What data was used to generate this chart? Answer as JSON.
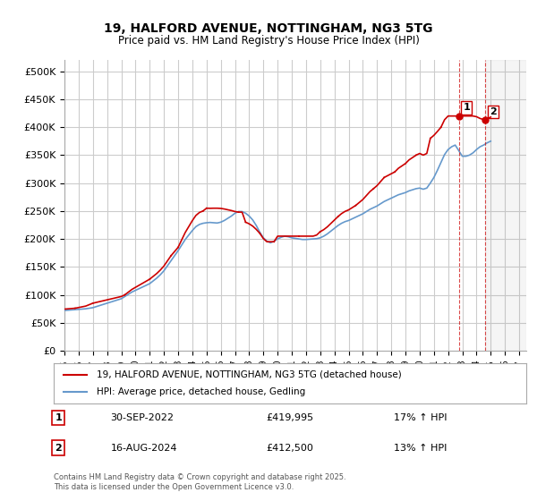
{
  "title": "19, HALFORD AVENUE, NOTTINGHAM, NG3 5TG",
  "subtitle": "Price paid vs. HM Land Registry's House Price Index (HPI)",
  "ylim": [
    0,
    520000
  ],
  "yticks": [
    0,
    50000,
    100000,
    150000,
    200000,
    250000,
    300000,
    350000,
    400000,
    450000,
    500000
  ],
  "xlim_start": 1995.0,
  "xlim_end": 2027.5,
  "xticks": [
    1995,
    1996,
    1997,
    1998,
    1999,
    2000,
    2001,
    2002,
    2003,
    2004,
    2005,
    2006,
    2007,
    2008,
    2009,
    2010,
    2011,
    2012,
    2013,
    2014,
    2015,
    2016,
    2017,
    2018,
    2019,
    2020,
    2021,
    2022,
    2023,
    2024,
    2025,
    2026,
    2027
  ],
  "red_line_color": "#cc0000",
  "blue_line_color": "#6699cc",
  "grid_color": "#cccccc",
  "background_color": "#ffffff",
  "legend_label_red": "19, HALFORD AVENUE, NOTTINGHAM, NG3 5TG (detached house)",
  "legend_label_blue": "HPI: Average price, detached house, Gedling",
  "annotation1_label": "1",
  "annotation1_date": "30-SEP-2022",
  "annotation1_price": "£419,995",
  "annotation1_hpi": "17% ↑ HPI",
  "annotation2_label": "2",
  "annotation2_date": "16-AUG-2024",
  "annotation2_price": "£412,500",
  "annotation2_hpi": "13% ↑ HPI",
  "footer": "Contains HM Land Registry data © Crown copyright and database right 2025.\nThis data is licensed under the Open Government Licence v3.0.",
  "vline1_x": 2022.75,
  "vline2_x": 2024.62,
  "marker1_x": 2022.75,
  "marker1_y": 419995,
  "marker2_x": 2024.62,
  "marker2_y": 412500,
  "hpi_data": {
    "x": [
      1995.0,
      1995.25,
      1995.5,
      1995.75,
      1996.0,
      1996.25,
      1996.5,
      1996.75,
      1997.0,
      1997.25,
      1997.5,
      1997.75,
      1998.0,
      1998.25,
      1998.5,
      1998.75,
      1999.0,
      1999.25,
      1999.5,
      1999.75,
      2000.0,
      2000.25,
      2000.5,
      2000.75,
      2001.0,
      2001.25,
      2001.5,
      2001.75,
      2002.0,
      2002.25,
      2002.5,
      2002.75,
      2003.0,
      2003.25,
      2003.5,
      2003.75,
      2004.0,
      2004.25,
      2004.5,
      2004.75,
      2005.0,
      2005.25,
      2005.5,
      2005.75,
      2006.0,
      2006.25,
      2006.5,
      2006.75,
      2007.0,
      2007.25,
      2007.5,
      2007.75,
      2008.0,
      2008.25,
      2008.5,
      2008.75,
      2009.0,
      2009.25,
      2009.5,
      2009.75,
      2010.0,
      2010.25,
      2010.5,
      2010.75,
      2011.0,
      2011.25,
      2011.5,
      2011.75,
      2012.0,
      2012.25,
      2012.5,
      2012.75,
      2013.0,
      2013.25,
      2013.5,
      2013.75,
      2014.0,
      2014.25,
      2014.5,
      2014.75,
      2015.0,
      2015.25,
      2015.5,
      2015.75,
      2016.0,
      2016.25,
      2016.5,
      2016.75,
      2017.0,
      2017.25,
      2017.5,
      2017.75,
      2018.0,
      2018.25,
      2018.5,
      2018.75,
      2019.0,
      2019.25,
      2019.5,
      2019.75,
      2020.0,
      2020.25,
      2020.5,
      2020.75,
      2021.0,
      2021.25,
      2021.5,
      2021.75,
      2022.0,
      2022.25,
      2022.5,
      2022.75,
      2023.0,
      2023.25,
      2023.5,
      2023.75,
      2024.0,
      2024.25,
      2024.5,
      2024.75,
      2025.0
    ],
    "y": [
      72000,
      72500,
      73000,
      73500,
      74000,
      74500,
      75000,
      76000,
      77000,
      79000,
      81000,
      83000,
      85000,
      87000,
      89000,
      91000,
      93000,
      97000,
      101000,
      105000,
      108000,
      111000,
      114000,
      117000,
      120000,
      125000,
      130000,
      136000,
      143000,
      152000,
      161000,
      170000,
      179000,
      189000,
      199000,
      207000,
      215000,
      222000,
      226000,
      228000,
      229000,
      229500,
      229000,
      228500,
      230000,
      233000,
      237000,
      241000,
      246000,
      249000,
      249000,
      246000,
      241000,
      234000,
      224000,
      212000,
      202000,
      196000,
      193000,
      196000,
      200000,
      203000,
      205000,
      204000,
      202000,
      201000,
      200000,
      199000,
      199000,
      199500,
      200000,
      200500,
      202000,
      205000,
      209000,
      214000,
      219000,
      224000,
      228000,
      231000,
      233000,
      236000,
      239000,
      242000,
      245000,
      249000,
      253000,
      256000,
      259000,
      263000,
      267000,
      270000,
      273000,
      276000,
      279000,
      281000,
      283000,
      286000,
      288000,
      290000,
      291000,
      289000,
      291000,
      300000,
      310000,
      323000,
      337000,
      351000,
      360000,
      365000,
      368000,
      358000,
      348000,
      348000,
      350000,
      354000,
      360000,
      365000,
      368000,
      372000,
      375000
    ]
  },
  "price_data": {
    "x": [
      1995.75,
      1997.0,
      1999.25,
      2001.0,
      2002.5,
      2003.0,
      2004.75,
      2005.0,
      2007.25,
      2007.75,
      2008.75,
      2009.75,
      2011.5,
      2013.0,
      2014.25,
      2015.5,
      2016.75,
      2017.5,
      2018.25,
      2019.0,
      2019.75,
      2020.75,
      2021.5,
      2022.75,
      2024.62
    ],
    "y": [
      76000,
      85000,
      100000,
      128000,
      170000,
      185000,
      250000,
      255000,
      248000,
      230000,
      210000,
      195000,
      205000,
      213000,
      240000,
      260000,
      290000,
      310000,
      320000,
      335000,
      350000,
      380000,
      400000,
      419995,
      412500
    ]
  }
}
